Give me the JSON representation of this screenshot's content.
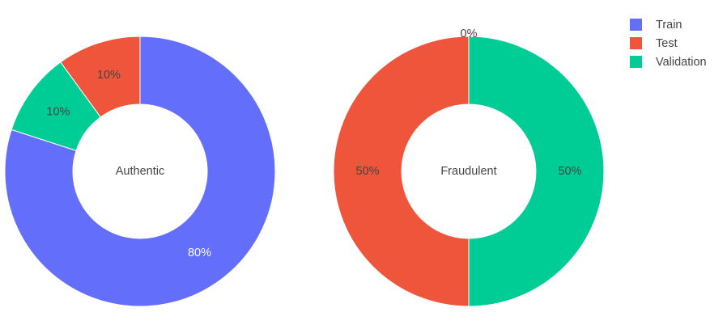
{
  "chart_data": [
    {
      "type": "pie",
      "hole": true,
      "center_label": "Authentic",
      "start": "top",
      "direction": "clockwise",
      "slices": [
        {
          "name": "Train",
          "value": 80,
          "label": "80%",
          "color": "#636efa"
        },
        {
          "name": "Validation",
          "value": 10,
          "label": "10%",
          "color": "#00cc96"
        },
        {
          "name": "Test",
          "value": 10,
          "label": "10%",
          "color": "#ef553b"
        }
      ]
    },
    {
      "type": "pie",
      "hole": true,
      "center_label": "Fraudulent",
      "start": "top",
      "direction": "clockwise",
      "slices": [
        {
          "name": "Validation",
          "value": 50,
          "label": "50%",
          "color": "#00cc96"
        },
        {
          "name": "Test",
          "value": 50,
          "label": "50%",
          "color": "#ef553b"
        },
        {
          "name": "Train",
          "value": 0,
          "label": "0%",
          "color": "#636efa"
        }
      ]
    }
  ],
  "legend": {
    "placement": "top-right",
    "items": [
      {
        "label": "Train",
        "color": "#636efa"
      },
      {
        "label": "Test",
        "color": "#ef553b"
      },
      {
        "label": "Validation",
        "color": "#00cc96"
      }
    ]
  }
}
